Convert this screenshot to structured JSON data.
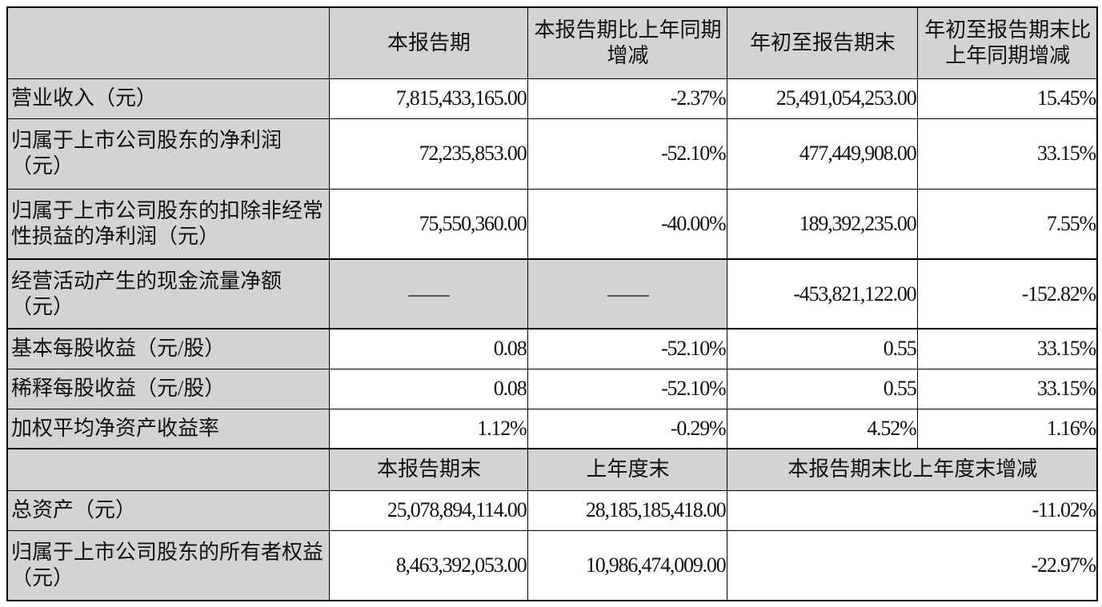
{
  "header": [
    "",
    "本报告期",
    "本报告期比上年同期增减",
    "年初至报告期末",
    "年初至报告期末比上年同期增减"
  ],
  "rows": [
    {
      "label": "营业收入（元）",
      "values": [
        "7,815,433,165.00",
        "-2.37%",
        "25,491,054,253.00",
        "15.45%"
      ]
    },
    {
      "label": "归属于上市公司股东的净利润（元）",
      "values": [
        "72,235,853.00",
        "-52.10%",
        "477,449,908.00",
        "33.15%"
      ]
    },
    {
      "label": "归属于上市公司股东的扣除非经常性损益的净利润（元）",
      "values": [
        "75,550,360.00",
        "-40.00%",
        "189,392,235.00",
        "7.55%"
      ]
    },
    {
      "label": "经营活动产生的现金流量净额（元）",
      "values": [
        "——",
        "——",
        "-453,821,122.00",
        "-152.82%"
      ]
    },
    {
      "label": "基本每股收益（元/股）",
      "values": [
        "0.08",
        "-52.10%",
        "0.55",
        "33.15%"
      ]
    },
    {
      "label": "稀释每股收益（元/股）",
      "values": [
        "0.08",
        "-52.10%",
        "0.55",
        "33.15%"
      ]
    },
    {
      "label": "加权平均净资产收益率",
      "values": [
        "1.12%",
        "-0.29%",
        "4.52%",
        "1.16%"
      ]
    }
  ],
  "header2": [
    "",
    "本报告期末",
    "上年度末",
    "本报告期末比上年度末增减"
  ],
  "rows2": [
    {
      "label": "总资产（元）",
      "values": [
        "25,078,894,114.00",
        "28,185,185,418.00",
        "-11.02%"
      ]
    },
    {
      "label": "归属于上市公司股东的所有者权益（元）",
      "values": [
        "8,463,392,053.00",
        "10,986,474,009.00",
        "-22.97%"
      ]
    }
  ],
  "colors": {
    "header_fill": "#d3d3d3",
    "border": "#000000"
  }
}
